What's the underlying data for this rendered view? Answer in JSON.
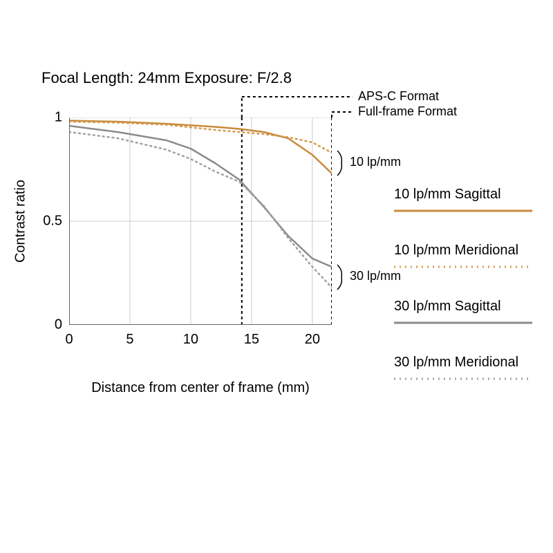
{
  "title_line": "Focal Length: 24mm   Exposure: F/2.8",
  "ylabel": "Contrast ratio",
  "xlabel": "Distance from center of frame (mm)",
  "chart": {
    "type": "line",
    "xlim": [
      0,
      21.6
    ],
    "ylim": [
      0,
      1
    ],
    "x_ticks": [
      0,
      5,
      10,
      15,
      20
    ],
    "y_ticks": [
      0,
      0.5,
      1
    ],
    "y_tick_labels": [
      "0",
      "0.5",
      "1"
    ],
    "grid_color": "#cccccc",
    "axis_color": "#666666",
    "background_color": "#ffffff",
    "axis_fontsize": 20,
    "label_fontsize": 20,
    "series": [
      {
        "name": "10 lp/mm Sagittal",
        "color": "#c78a3a",
        "dash": "solid",
        "width": 2.5,
        "x": [
          0,
          4,
          8,
          12,
          14,
          16,
          18,
          20,
          21.6
        ],
        "y": [
          0.985,
          0.98,
          0.97,
          0.955,
          0.945,
          0.93,
          0.9,
          0.82,
          0.73
        ]
      },
      {
        "name": "10 lp/mm Meridional",
        "color": "#d39a4c",
        "dash": "dotted",
        "width": 2.5,
        "x": [
          0,
          4,
          8,
          12,
          14,
          16,
          18,
          20,
          21.6
        ],
        "y": [
          0.98,
          0.975,
          0.965,
          0.94,
          0.93,
          0.92,
          0.905,
          0.88,
          0.83
        ]
      },
      {
        "name": "30 lp/mm Sagittal",
        "color": "#8a8a8a",
        "dash": "solid",
        "width": 2.5,
        "x": [
          0,
          4,
          8,
          10,
          12,
          14,
          16,
          18,
          20,
          21.6
        ],
        "y": [
          0.96,
          0.93,
          0.89,
          0.85,
          0.78,
          0.7,
          0.57,
          0.43,
          0.32,
          0.28
        ]
      },
      {
        "name": "30 lp/mm Meridional",
        "color": "#a0a0a0",
        "dash": "dotted",
        "width": 2.5,
        "x": [
          0,
          4,
          8,
          10,
          12,
          14,
          16,
          18,
          20,
          21.6
        ],
        "y": [
          0.93,
          0.9,
          0.845,
          0.8,
          0.74,
          0.69,
          0.575,
          0.42,
          0.28,
          0.18
        ]
      }
    ],
    "vlines": [
      {
        "x": 14.2,
        "label": "APS-C Format",
        "color": "#000000",
        "dash": "4,4",
        "width": 2
      },
      {
        "x": 21.6,
        "label": "Full-frame Format",
        "color": "#000000",
        "dash": "4,4",
        "width": 2
      }
    ],
    "side_annotations": [
      {
        "y": 0.78,
        "text": "10 lp/mm"
      },
      {
        "y": 0.23,
        "text": "30 lp/mm"
      }
    ]
  },
  "legend": {
    "items": [
      {
        "label": "10 lp/mm Sagittal",
        "color": "#c78a3a",
        "dash": "solid"
      },
      {
        "label": "10 lp/mm Meridional",
        "color": "#d39a4c",
        "dash": "dotted"
      },
      {
        "label": "30 lp/mm Sagittal",
        "color": "#8a8a8a",
        "dash": "solid"
      },
      {
        "label": "30 lp/mm Meridional",
        "color": "#a0a0a0",
        "dash": "dotted"
      }
    ]
  }
}
